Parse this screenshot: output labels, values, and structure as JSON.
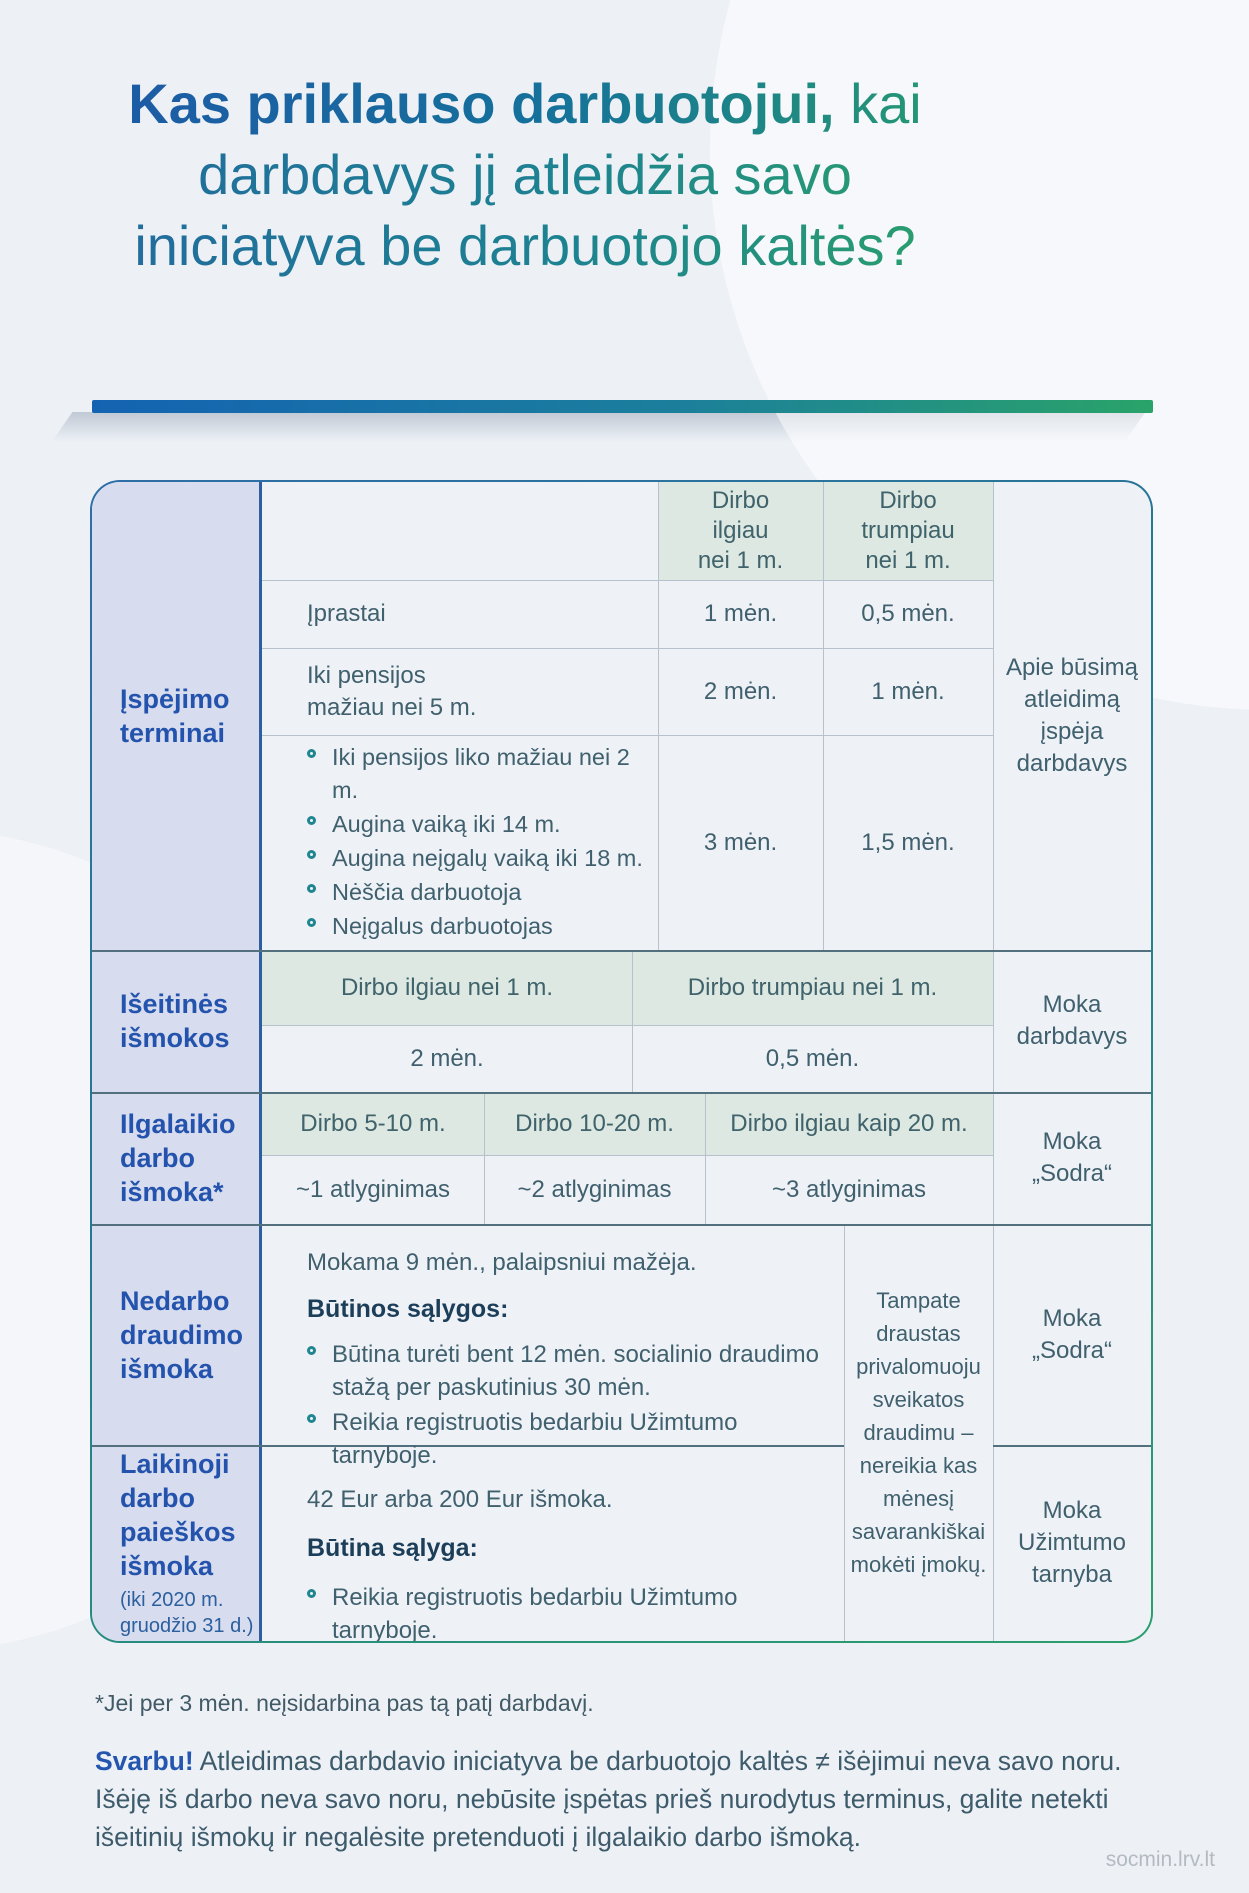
{
  "title": {
    "line1_bold": "Kas priklauso darbuotojui,",
    "line1_rest": " kai",
    "line2": "darbdavys jį atleidžia savo",
    "line3": "iniciatyva be darbuotojo kaltės?"
  },
  "table": {
    "warning": {
      "label": "Įspėjimo\nterminai",
      "col1_header": "Dirbo\nilgiau\nnei 1 m.",
      "col2_header": "Dirbo\ntrumpiau\nnei 1 m.",
      "row1": {
        "label": "Įprastai",
        "v1": "1 mėn.",
        "v2": "0,5 mėn."
      },
      "row2": {
        "label": "Iki pensijos\nmažiau nei 5 m.",
        "v1": "2 mėn.",
        "v2": "1 mėn."
      },
      "row3": {
        "items": [
          "Iki pensijos liko mažiau nei 2 m.",
          "Augina vaiką iki 14 m.",
          "Augina neįgalų vaiką iki 18 m.",
          "Nėščia darbuotoja",
          "Neįgalus darbuotojas"
        ],
        "v1": "3 mėn.",
        "v2": "1,5 mėn."
      },
      "right": "Apie būsimą\natleidimą\nįspėja\ndarbdavys"
    },
    "severance": {
      "label": "Išeitinės\nišmokos",
      "h1": "Dirbo ilgiau nei 1 m.",
      "h2": "Dirbo trumpiau nei 1 m.",
      "v1": "2 mėn.",
      "v2": "0,5 mėn.",
      "right": "Moka\ndarbdavys"
    },
    "longterm": {
      "label": "Ilgalaikio\ndarbo\nišmoka*",
      "h1": "Dirbo 5-10 m.",
      "h2": "Dirbo 10-20 m.",
      "h3": "Dirbo ilgiau kaip 20 m.",
      "v1": "~1 atlyginimas",
      "v2": "~2 atlyginimas",
      "v3": "~3 atlyginimas",
      "right": "Moka\n„Sodra“"
    },
    "unemployment": {
      "label": "Nedarbo\ndraudimo\nišmoka",
      "intro": "Mokama 9 mėn., palaipsniui mažėja.",
      "conditions_title": "Būtinos sąlygos:",
      "items": [
        "Būtina turėti bent 12 mėn. socialinio draudimo stažą per paskutinius 30 mėn.",
        "Reikia registruotis bedarbiu Užimtumo tarnyboje."
      ],
      "right": "Moka\n„Sodra“"
    },
    "jobsearch": {
      "label": "Laikinoji\ndarbo\npaieškos\nišmoka",
      "label_note": "(iki 2020 m.\ngruodžio 31 d.)",
      "intro": "42 Eur arba 200 Eur išmoka.",
      "conditions_title": "Būtina sąlyga:",
      "items": [
        "Reikia registruotis bedarbiu Užimtumo tarnyboje."
      ],
      "right": "Moka\nUžimtumo\ntarnyba"
    },
    "insured_note": "Tampate draustas privalomuoju sveikatos draudimu – nereikia kas mėnesį savarankiškai mokėti įmokų."
  },
  "footer": {
    "footnote": "*Jei per 3 mėn. neįsidarbina pas tą patį darbdavį.",
    "important_label": "Svarbu!",
    "important_text": " Atleidimas darbdavio iniciatyva be darbuotojo kaltės ≠ išėjimui neva savo noru. Išėję iš darbo neva savo noru, nebūsite įspėtas prieš nurodytus terminus, galite netekti išeitinių išmokų ir negalėsite pretenduoti į ilgalaikio darbo išmoką.",
    "watermark": "socmin.lrv.lt"
  },
  "colors": {
    "accent_blue": "#2353ac",
    "accent_green": "#2aa269",
    "label_bg": "#d7dcee",
    "header_bg": "#dce8e1",
    "navy_bold": "#1c3e59"
  }
}
